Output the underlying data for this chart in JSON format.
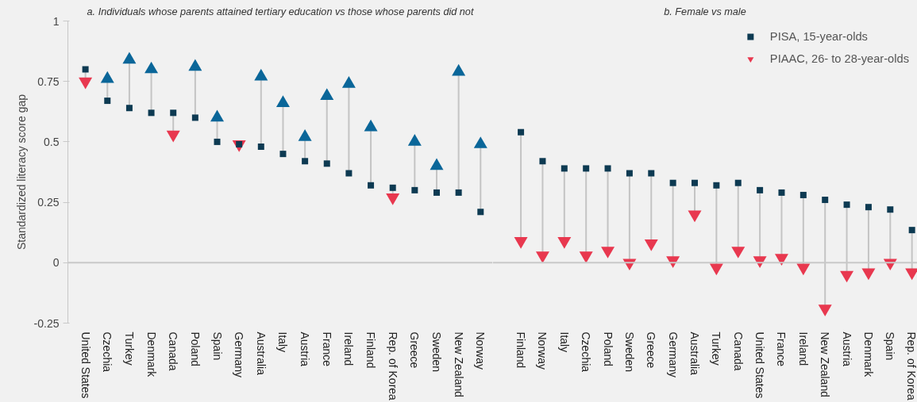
{
  "chart_data": [
    {
      "type": "scatter",
      "title": "a. Individuals whose parents attained tertiary education vs those whose parents did not",
      "ylabel": "Standardized literacy score gap",
      "categories": [
        "United States",
        "Czechia",
        "Turkey",
        "Denmark",
        "Canada",
        "Poland",
        "Spain",
        "Germany",
        "Australia",
        "Italy",
        "Austria",
        "France",
        "Ireland",
        "Finland",
        "Rep. of Korea",
        "Greece",
        "Sweden",
        "New Zealand",
        "Norway"
      ],
      "series": [
        {
          "marker": "square",
          "color": "#0d3a52",
          "values": [
            0.8,
            0.67,
            0.64,
            0.62,
            0.62,
            0.6,
            0.5,
            0.49,
            0.48,
            0.45,
            0.42,
            0.41,
            0.37,
            0.32,
            0.31,
            0.3,
            0.29,
            0.29,
            0.21
          ]
        },
        {
          "marker": "triangle",
          "colors": [
            "#e8384f",
            "#0a6699",
            "#0a6699",
            "#0a6699",
            "#e8384f",
            "#0a6699",
            "#0a6699",
            "#e8384f",
            "#0a6699",
            "#0a6699",
            "#0a6699",
            "#0a6699",
            "#0a6699",
            "#0a6699",
            "#e8384f",
            "#0a6699",
            "#0a6699",
            "#0a6699",
            "#0a6699"
          ],
          "values": [
            0.75,
            0.76,
            0.84,
            0.8,
            0.53,
            0.81,
            0.6,
            0.49,
            0.77,
            0.66,
            0.52,
            0.69,
            0.74,
            0.56,
            0.27,
            0.5,
            0.4,
            0.79,
            0.49
          ]
        }
      ],
      "ylim": [
        -0.25,
        1
      ],
      "yticks": [
        {
          "value": -0.25,
          "label": "-0.25"
        },
        0,
        0.25,
        0.5,
        0.75,
        1
      ],
      "ref_lines": [
        {
          "axis": "y",
          "value": 0,
          "color": "#c8c8c8"
        }
      ],
      "grid": false,
      "legend": false
    },
    {
      "type": "scatter",
      "title": "b. Female vs male",
      "categories": [
        "Finland",
        "Norway",
        "Italy",
        "Czechia",
        "Poland",
        "Sweden",
        "Greece",
        "Germany",
        "Australia",
        "Turkey",
        "Canada",
        "United States",
        "France",
        "Ireland",
        "New Zealand",
        "Austria",
        "Denmark",
        "Spain",
        "Rep. of Korea"
      ],
      "series": [
        {
          "name": "PISA, 15-year-olds",
          "marker": "square",
          "color": "#0d3a52",
          "values": [
            0.54,
            0.42,
            0.39,
            0.39,
            0.39,
            0.37,
            0.37,
            0.33,
            0.33,
            0.32,
            0.33,
            0.3,
            0.29,
            0.28,
            0.26,
            0.24,
            0.23,
            0.22,
            0.135
          ]
        },
        {
          "name": "PIAAC, 26- to 28-year-olds",
          "marker": "triangle",
          "colors": [
            "#e8384f",
            "#e8384f",
            "#e8384f",
            "#e8384f",
            "#e8384f",
            "#e8384f",
            "#e8384f",
            "#e8384f",
            "#e8384f",
            "#e8384f",
            "#e8384f",
            "#e8384f",
            "#e8384f",
            "#e8384f",
            "#e8384f",
            "#e8384f",
            "#e8384f",
            "#e8384f",
            "#e8384f"
          ],
          "values": [
            0.09,
            0.03,
            0.09,
            0.03,
            0.05,
            0.0,
            0.08,
            0.01,
            0.2,
            -0.02,
            0.05,
            0.01,
            0.02,
            -0.02,
            -0.19,
            -0.05,
            -0.04,
            0.0,
            -0.04
          ]
        }
      ],
      "ylim": [
        -0.25,
        1
      ],
      "ref_lines": [
        {
          "axis": "y",
          "value": 0,
          "color": "#c8c8c8"
        }
      ],
      "grid": false,
      "legend": "top right",
      "tick_labels": "x"
    }
  ]
}
